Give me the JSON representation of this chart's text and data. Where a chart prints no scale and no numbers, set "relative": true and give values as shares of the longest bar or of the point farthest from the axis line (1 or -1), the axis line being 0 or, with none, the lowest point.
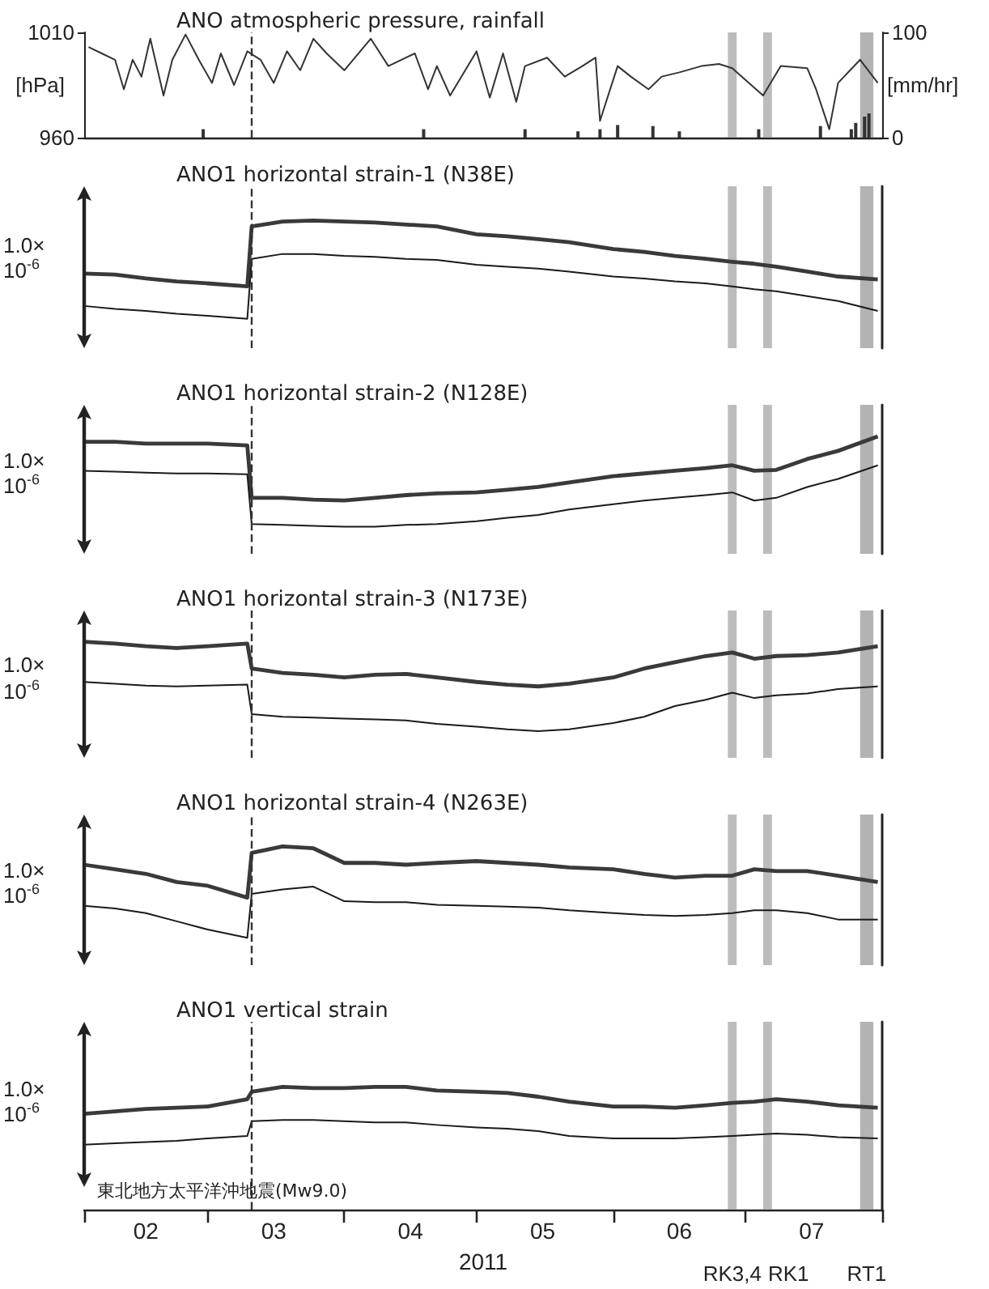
{
  "chart_data": [
    {
      "type": "line",
      "title": "ANO atmospheric pressure, rainfall",
      "ylabel": "[hPa]",
      "y2label": "[mm/hr]",
      "xlim": [
        "2011-02-01",
        "2011-08-01"
      ],
      "ylim": [
        960,
        1010
      ],
      "yticks": [
        960,
        1010
      ],
      "y2lim": [
        0,
        100
      ],
      "y2ticks": [
        0,
        100
      ],
      "tick_labels": "y",
      "series": [
        {
          "type": "line",
          "color": "#333333",
          "x": [
            "2011-02-02",
            "2011-02-05",
            "2011-02-08",
            "2011-02-10",
            "2011-02-12",
            "2011-02-14",
            "2011-02-16",
            "2011-02-19",
            "2011-02-21",
            "2011-02-24",
            "2011-02-27",
            "2011-03-02",
            "2011-03-04",
            "2011-03-07",
            "2011-03-10",
            "2011-03-13",
            "2011-03-16",
            "2011-03-19",
            "2011-03-22",
            "2011-03-25",
            "2011-03-28",
            "2011-04-01",
            "2011-04-07",
            "2011-04-11",
            "2011-04-17",
            "2011-04-20",
            "2011-04-22",
            "2011-04-25",
            "2011-05-01",
            "2011-05-04",
            "2011-05-07",
            "2011-05-10",
            "2011-05-12",
            "2011-05-17",
            "2011-05-21",
            "2011-05-25",
            "2011-05-28",
            "2011-05-29",
            "2011-06-02",
            "2011-06-05",
            "2011-06-09",
            "2011-06-12",
            "2011-06-16",
            "2011-06-21",
            "2011-06-25",
            "2011-06-28",
            "2011-07-05",
            "2011-07-09",
            "2011-07-15",
            "2011-07-17",
            "2011-07-20",
            "2011-07-22",
            "2011-07-27",
            "2011-07-31"
          ],
          "values": [
            1003,
            1000,
            997,
            983,
            997,
            989,
            1007,
            980,
            997,
            1009,
            997,
            986,
            1000,
            985,
            1001,
            997,
            986,
            1001,
            992,
            1007,
            1000,
            992,
            1007,
            994,
            1000,
            983,
            994,
            980,
            1001,
            979,
            1000,
            977,
            994,
            998,
            989,
            994,
            998,
            968,
            994,
            989,
            983,
            989,
            991,
            994,
            995,
            993,
            980,
            994,
            993,
            983,
            964,
            986,
            997,
            986
          ]
        },
        {
          "type": "bar",
          "axis": "y2",
          "color": "#333333",
          "x": [
            "2011-02-28",
            "2011-04-19",
            "2011-05-12",
            "2011-05-24",
            "2011-05-29",
            "2011-06-02",
            "2011-06-10",
            "2011-06-16",
            "2011-07-04",
            "2011-07-18",
            "2011-07-25",
            "2011-07-26",
            "2011-07-28",
            "2011-07-29"
          ],
          "values": [
            8,
            8,
            8,
            6,
            8,
            12,
            11,
            6,
            8,
            11,
            8,
            14,
            20,
            23
          ]
        }
      ],
      "ref_lines": [
        {
          "axis": "x",
          "value": "2011-03-11",
          "line_style": "dashed",
          "color": "#333333"
        }
      ],
      "bands": [
        {
          "axis": "x",
          "from": "2011-06-27",
          "to": "2011-06-29",
          "color": "#a6a6a6"
        },
        {
          "axis": "x",
          "from": "2011-07-05",
          "to": "2011-07-07",
          "color": "#a6a6a6"
        },
        {
          "axis": "x",
          "from": "2011-07-27",
          "to": "2011-07-30",
          "color": "#999999"
        }
      ]
    },
    {
      "type": "line",
      "title": "ANO1 horizontal strain-1 (N38E)",
      "relative": true,
      "xlim": [
        "2011-02-01",
        "2011-08-01"
      ],
      "tick_labels": false,
      "annotations": [
        "1.0×\n10$^{-6}$"
      ],
      "x": [
        "2011-02-01",
        "2011-02-08",
        "2011-02-15",
        "2011-02-22",
        "2011-03-01",
        "2011-03-10",
        "2011-03-11",
        "2011-03-18",
        "2011-03-25",
        "2011-04-01",
        "2011-04-08",
        "2011-04-15",
        "2011-04-22",
        "2011-05-01",
        "2011-05-08",
        "2011-05-15",
        "2011-05-22",
        "2011-06-01",
        "2011-06-08",
        "2011-06-15",
        "2011-06-22",
        "2011-06-28",
        "2011-07-03",
        "2011-07-08",
        "2011-07-15",
        "2011-07-22",
        "2011-07-31"
      ],
      "series": [
        {
          "color": "#3a3a3a",
          "values": [
            0.46,
            0.45,
            0.41,
            0.38,
            0.36,
            0.33,
            0.94,
            0.99,
            1.0,
            0.99,
            0.98,
            0.96,
            0.94,
            0.86,
            0.84,
            0.81,
            0.78,
            0.71,
            0.68,
            0.64,
            0.61,
            0.58,
            0.56,
            0.53,
            0.48,
            0.43,
            0.4
          ]
        },
        {
          "color": "#1a1a1a",
          "values": [
            0.13,
            0.1,
            0.08,
            0.05,
            0.03,
            0,
            0.61,
            0.66,
            0.66,
            0.64,
            0.63,
            0.61,
            0.6,
            0.55,
            0.53,
            0.51,
            0.48,
            0.43,
            0.41,
            0.38,
            0.36,
            0.33,
            0.3,
            0.28,
            0.23,
            0.18,
            0.08
          ]
        }
      ],
      "ref_lines": [
        {
          "axis": "x",
          "value": "2011-03-11",
          "line_style": "dashed",
          "color": "#333333"
        }
      ],
      "bands": [
        {
          "axis": "x",
          "from": "2011-06-27",
          "to": "2011-06-29",
          "color": "#a6a6a6"
        },
        {
          "axis": "x",
          "from": "2011-07-05",
          "to": "2011-07-07",
          "color": "#a6a6a6"
        },
        {
          "axis": "x",
          "from": "2011-07-27",
          "to": "2011-07-30",
          "color": "#999999"
        }
      ]
    },
    {
      "type": "line",
      "title": "ANO1 horizontal strain-2 (N128E)",
      "relative": true,
      "xlim": [
        "2011-02-01",
        "2011-08-01"
      ],
      "tick_labels": false,
      "annotations": [
        "1.0×\n10$^{-6}$"
      ],
      "x": [
        "2011-02-01",
        "2011-02-08",
        "2011-02-15",
        "2011-02-22",
        "2011-03-01",
        "2011-03-10",
        "2011-03-11",
        "2011-03-18",
        "2011-03-25",
        "2011-04-01",
        "2011-04-08",
        "2011-04-15",
        "2011-04-22",
        "2011-05-01",
        "2011-05-08",
        "2011-05-15",
        "2011-05-22",
        "2011-06-01",
        "2011-06-08",
        "2011-06-15",
        "2011-06-22",
        "2011-06-28",
        "2011-07-03",
        "2011-07-08",
        "2011-07-15",
        "2011-07-22",
        "2011-07-31"
      ],
      "series": [
        {
          "color": "#3a3a3a",
          "values": [
            0.94,
            0.94,
            0.92,
            0.92,
            0.92,
            0.9,
            0.32,
            0.32,
            0.3,
            0.29,
            0.32,
            0.35,
            0.37,
            0.38,
            0.41,
            0.44,
            0.49,
            0.56,
            0.59,
            0.62,
            0.65,
            0.68,
            0.62,
            0.63,
            0.75,
            0.84,
            1.0
          ]
        },
        {
          "color": "#1a1a1a",
          "values": [
            0.62,
            0.61,
            0.6,
            0.59,
            0.59,
            0.58,
            0.03,
            0.02,
            0.01,
            0,
            0,
            0.02,
            0.03,
            0.06,
            0.1,
            0.13,
            0.19,
            0.25,
            0.29,
            0.32,
            0.35,
            0.38,
            0.29,
            0.32,
            0.44,
            0.53,
            0.68
          ]
        }
      ],
      "ref_lines": [
        {
          "axis": "x",
          "value": "2011-03-11",
          "line_style": "dashed",
          "color": "#333333"
        }
      ],
      "bands": [
        {
          "axis": "x",
          "from": "2011-06-27",
          "to": "2011-06-29",
          "color": "#a6a6a6"
        },
        {
          "axis": "x",
          "from": "2011-07-05",
          "to": "2011-07-07",
          "color": "#a6a6a6"
        },
        {
          "axis": "x",
          "from": "2011-07-27",
          "to": "2011-07-30",
          "color": "#999999"
        }
      ]
    },
    {
      "type": "line",
      "title": "ANO1 horizontal strain-3 (N173E)",
      "relative": true,
      "xlim": [
        "2011-02-01",
        "2011-08-01"
      ],
      "tick_labels": false,
      "annotations": [
        "1.0×\n10$^{-6}$"
      ],
      "x": [
        "2011-02-01",
        "2011-02-08",
        "2011-02-15",
        "2011-02-22",
        "2011-03-01",
        "2011-03-10",
        "2011-03-11",
        "2011-03-18",
        "2011-03-25",
        "2011-04-01",
        "2011-04-08",
        "2011-04-15",
        "2011-04-22",
        "2011-05-01",
        "2011-05-08",
        "2011-05-15",
        "2011-05-22",
        "2011-06-01",
        "2011-06-08",
        "2011-06-15",
        "2011-06-22",
        "2011-06-28",
        "2011-07-03",
        "2011-07-08",
        "2011-07-15",
        "2011-07-22",
        "2011-07-31"
      ],
      "series": [
        {
          "color": "#3a3a3a",
          "values": [
            1.0,
            0.98,
            0.95,
            0.93,
            0.95,
            0.98,
            0.7,
            0.65,
            0.63,
            0.6,
            0.63,
            0.64,
            0.6,
            0.55,
            0.52,
            0.5,
            0.53,
            0.6,
            0.7,
            0.77,
            0.84,
            0.88,
            0.81,
            0.84,
            0.85,
            0.88,
            0.95
          ]
        },
        {
          "color": "#1a1a1a",
          "values": [
            0.55,
            0.53,
            0.51,
            0.5,
            0.51,
            0.52,
            0.19,
            0.16,
            0.15,
            0.14,
            0.13,
            0.12,
            0.08,
            0.05,
            0.02,
            0,
            0.02,
            0.09,
            0.16,
            0.28,
            0.35,
            0.43,
            0.37,
            0.4,
            0.42,
            0.47,
            0.5
          ]
        }
      ],
      "ref_lines": [
        {
          "axis": "x",
          "value": "2011-03-11",
          "line_style": "dashed",
          "color": "#333333"
        }
      ],
      "bands": [
        {
          "axis": "x",
          "from": "2011-06-27",
          "to": "2011-06-29",
          "color": "#a6a6a6"
        },
        {
          "axis": "x",
          "from": "2011-07-05",
          "to": "2011-07-07",
          "color": "#a6a6a6"
        },
        {
          "axis": "x",
          "from": "2011-07-27",
          "to": "2011-07-30",
          "color": "#999999"
        }
      ]
    },
    {
      "type": "line",
      "title": "ANO1 horizontal strain-4 (N263E)",
      "relative": true,
      "xlim": [
        "2011-02-01",
        "2011-08-01"
      ],
      "tick_labels": false,
      "annotations": [
        "1.0×\n10$^{-6}$"
      ],
      "x": [
        "2011-02-01",
        "2011-02-08",
        "2011-02-15",
        "2011-02-22",
        "2011-03-01",
        "2011-03-10",
        "2011-03-11",
        "2011-03-18",
        "2011-03-25",
        "2011-04-01",
        "2011-04-08",
        "2011-04-15",
        "2011-04-22",
        "2011-05-01",
        "2011-05-08",
        "2011-05-15",
        "2011-05-22",
        "2011-06-01",
        "2011-06-08",
        "2011-06-15",
        "2011-06-22",
        "2011-06-28",
        "2011-07-03",
        "2011-07-08",
        "2011-07-15",
        "2011-07-22",
        "2011-07-31"
      ],
      "series": [
        {
          "color": "#3a3a3a",
          "values": [
            0.8,
            0.75,
            0.7,
            0.61,
            0.57,
            0.44,
            0.93,
            1.0,
            0.98,
            0.82,
            0.82,
            0.8,
            0.82,
            0.84,
            0.82,
            0.8,
            0.77,
            0.75,
            0.7,
            0.66,
            0.68,
            0.68,
            0.75,
            0.73,
            0.73,
            0.68,
            0.61
          ]
        },
        {
          "color": "#1a1a1a",
          "values": [
            0.35,
            0.32,
            0.27,
            0.18,
            0.09,
            0,
            0.48,
            0.53,
            0.56,
            0.4,
            0.39,
            0.39,
            0.36,
            0.35,
            0.34,
            0.33,
            0.3,
            0.27,
            0.25,
            0.24,
            0.25,
            0.27,
            0.3,
            0.3,
            0.27,
            0.2,
            0.2
          ]
        }
      ],
      "ref_lines": [
        {
          "axis": "x",
          "value": "2011-03-11",
          "line_style": "dashed",
          "color": "#333333"
        }
      ],
      "bands": [
        {
          "axis": "x",
          "from": "2011-06-27",
          "to": "2011-06-29",
          "color": "#a6a6a6"
        },
        {
          "axis": "x",
          "from": "2011-07-05",
          "to": "2011-07-07",
          "color": "#a6a6a6"
        },
        {
          "axis": "x",
          "from": "2011-07-27",
          "to": "2011-07-30",
          "color": "#999999"
        }
      ]
    },
    {
      "type": "line",
      "title": "ANO1 vertical strain",
      "xlabel": "2011",
      "relative": true,
      "xlim": [
        "2011-02-01",
        "2011-08-01"
      ],
      "tick_labels": "x",
      "annotations": [
        "1.0×\n10$^{-6}$"
      ],
      "xticks": [
        {
          "value": "2011-02-01",
          "label": null
        },
        {
          "value": "2011-02-15",
          "label": "02"
        },
        {
          "value": "2011-03-01",
          "label": null
        },
        {
          "value": "2011-03-16",
          "label": "03"
        },
        {
          "value": "2011-04-01",
          "label": null
        },
        {
          "value": "2011-04-16",
          "label": "04"
        },
        {
          "value": "2011-05-01",
          "label": null
        },
        {
          "value": "2011-05-16",
          "label": "05"
        },
        {
          "value": "2011-06-01",
          "label": null
        },
        {
          "value": "2011-06-16",
          "label": "06"
        },
        {
          "value": "2011-07-01",
          "label": null
        },
        {
          "value": "2011-07-16",
          "label": "07"
        },
        {
          "value": "2011-08-01",
          "label": null
        }
      ],
      "x": [
        "2011-02-01",
        "2011-02-08",
        "2011-02-15",
        "2011-02-22",
        "2011-03-01",
        "2011-03-10",
        "2011-03-11",
        "2011-03-18",
        "2011-03-25",
        "2011-04-01",
        "2011-04-08",
        "2011-04-15",
        "2011-04-22",
        "2011-05-01",
        "2011-05-08",
        "2011-05-15",
        "2011-05-22",
        "2011-06-01",
        "2011-06-08",
        "2011-06-15",
        "2011-06-22",
        "2011-06-28",
        "2011-07-03",
        "2011-07-08",
        "2011-07-15",
        "2011-07-22",
        "2011-07-31"
      ],
      "series": [
        {
          "color": "#3a3a3a",
          "values": [
            0.78,
            0.8,
            0.82,
            0.83,
            0.84,
            0.9,
            0.96,
            1.0,
            0.99,
            0.99,
            1.0,
            1.0,
            0.97,
            0.96,
            0.95,
            0.92,
            0.88,
            0.84,
            0.84,
            0.83,
            0.85,
            0.87,
            0.88,
            0.9,
            0.88,
            0.85,
            0.83
          ]
        },
        {
          "color": "#1a1a1a",
          "values": [
            0.53,
            0.54,
            0.55,
            0.56,
            0.58,
            0.6,
            0.72,
            0.73,
            0.73,
            0.72,
            0.71,
            0.71,
            0.69,
            0.67,
            0.66,
            0.64,
            0.6,
            0.58,
            0.58,
            0.58,
            0.59,
            0.6,
            0.61,
            0.62,
            0.61,
            0.59,
            0.58
          ]
        }
      ],
      "ref_lines": [
        {
          "axis": "x",
          "value": "2011-03-11",
          "line_style": "dashed",
          "color": "#333333",
          "label": "東北地方太平洋沖地震(Mw9.0)"
        }
      ],
      "bands": [
        {
          "axis": "x",
          "from": "2011-06-27",
          "to": "2011-06-29",
          "color": "#a6a6a6",
          "label": "RK3,4"
        },
        {
          "axis": "x",
          "from": "2011-07-05",
          "to": "2011-07-07",
          "color": "#a6a6a6",
          "label": "RK1"
        },
        {
          "axis": "x",
          "from": "2011-07-27",
          "to": "2011-07-30",
          "color": "#999999",
          "label": "RT1"
        }
      ]
    }
  ]
}
